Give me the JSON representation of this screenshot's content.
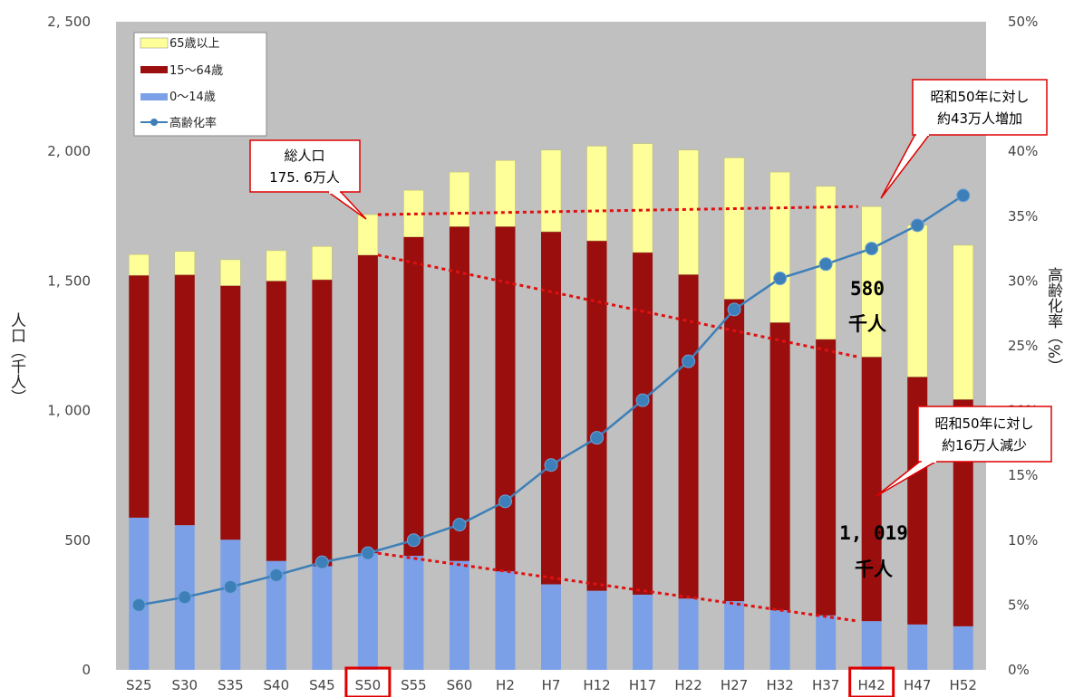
{
  "chart_data": {
    "type": "bar",
    "categories": [
      "S25",
      "S30",
      "S35",
      "S40",
      "S45",
      "S50",
      "S55",
      "S60",
      "H2",
      "H7",
      "H12",
      "H17",
      "H22",
      "H27",
      "H32",
      "H37",
      "H42",
      "H47",
      "H52"
    ],
    "highlighted_categories": [
      "S50",
      "H42"
    ],
    "series": [
      {
        "name": "0〜14歳",
        "color": "#7ba0e8",
        "values": [
          587,
          558,
          502,
          420,
          400,
          450,
          440,
          420,
          380,
          330,
          305,
          290,
          275,
          265,
          230,
          210,
          188,
          175,
          168
        ]
      },
      {
        "name": "15〜64歳",
        "color": "#9a0e0e",
        "values": [
          935,
          966,
          980,
          1080,
          1105,
          1150,
          1230,
          1290,
          1330,
          1360,
          1350,
          1320,
          1250,
          1165,
          1110,
          1065,
          1019,
          955,
          875
        ]
      },
      {
        "name": "65歳以上",
        "color": "#ffff99",
        "values": [
          80,
          90,
          100,
          117,
          128,
          156,
          180,
          210,
          255,
          315,
          365,
          420,
          480,
          545,
          580,
          590,
          580,
          585,
          595
        ]
      }
    ],
    "line_series": {
      "name": "高齢化率",
      "color": "#3d7fb8",
      "values": [
        5.0,
        5.6,
        6.4,
        7.3,
        8.3,
        9.0,
        10.0,
        11.2,
        13.0,
        15.8,
        17.9,
        20.8,
        23.8,
        27.8,
        30.2,
        31.3,
        32.5,
        34.3,
        36.6
      ]
    },
    "y_left": {
      "label": "人口（千人）",
      "range": [
        0,
        2500
      ],
      "ticks": [
        "0",
        "500",
        "1, 000",
        "1, 500",
        "2, 000",
        "2, 500"
      ]
    },
    "y_right": {
      "label": "高齢化率（%）",
      "range": [
        0,
        50
      ],
      "ticks": [
        "0%",
        "5%",
        "10%",
        "15%",
        "20%",
        "25%",
        "30%",
        "35%",
        "40%",
        "45%",
        "50%"
      ]
    },
    "legend": {
      "position": "top-left",
      "items": [
        "65歳以上",
        "15〜64歳",
        "0〜14歳",
        "高齢化率"
      ]
    },
    "annotations": {
      "total_population": {
        "line1": "総人口",
        "line2": "175. 6万人"
      },
      "increase": {
        "line1": "昭和50年に対し",
        "line2": "約43万人増加"
      },
      "decrease": {
        "line1": "昭和50年に対し",
        "line2": "約16万人減少"
      },
      "elderly_h42": {
        "line1": "580",
        "line2": "千人"
      },
      "working_h42": {
        "line1": "1, 019",
        "line2": "千人"
      }
    },
    "grid": false
  },
  "colors": {
    "plot_bg": "#c0c0c0",
    "highlight": "#e00000",
    "dotted_line": "#e01010"
  }
}
